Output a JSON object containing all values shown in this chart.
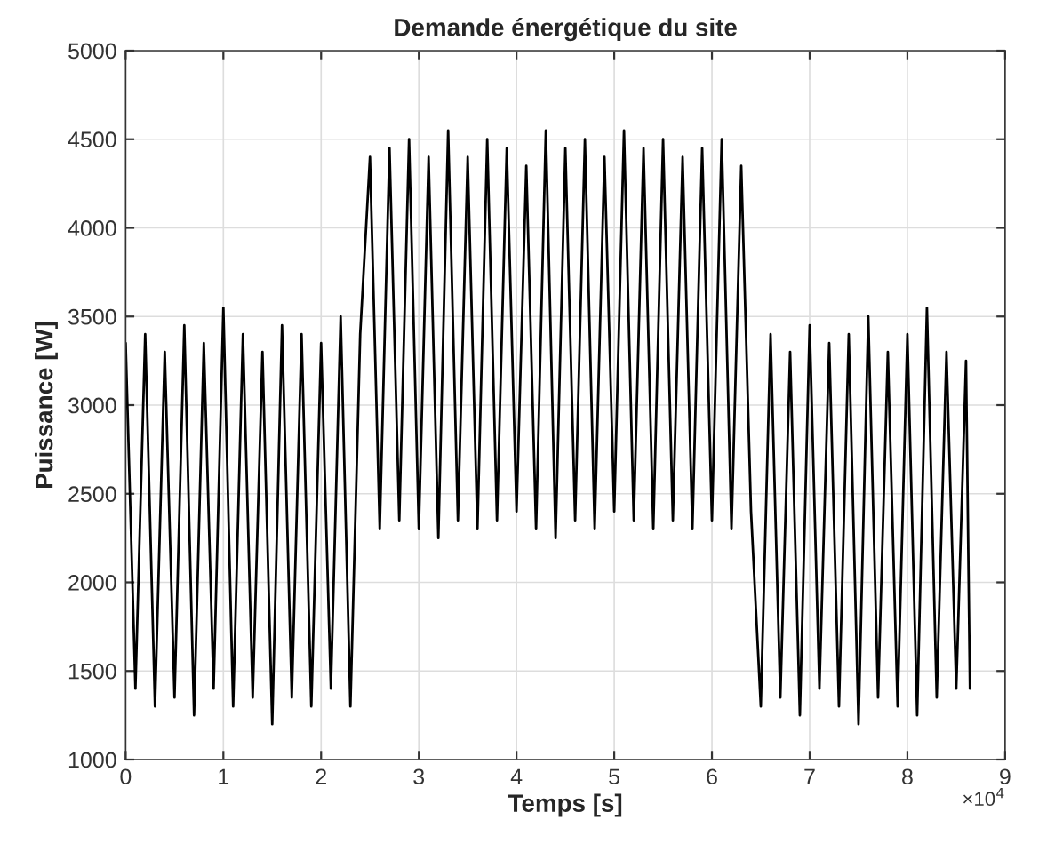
{
  "chart_data": {
    "type": "line",
    "title": "Demande énergétique du site",
    "xlabel": "Temps [s]",
    "ylabel": "Puissance [W]",
    "annotations": [
      "×10$^{4}$"
    ],
    "series": [
      {
        "color": "#000000",
        "x": [
          0,
          0.1,
          0.2,
          0.3,
          0.4,
          0.5,
          0.6,
          0.7,
          0.8,
          0.9,
          1.0,
          1.1,
          1.2,
          1.3,
          1.4,
          1.5,
          1.6,
          1.7,
          1.8,
          1.9,
          2.0,
          2.1,
          2.2,
          2.3,
          2.4,
          2.5,
          2.6,
          2.7,
          2.8,
          2.9,
          3.0,
          3.1,
          3.2,
          3.3,
          3.4,
          3.5,
          3.6,
          3.7,
          3.8,
          3.9,
          4.0,
          4.1,
          4.2,
          4.3,
          4.4,
          4.5,
          4.6,
          4.7,
          4.8,
          4.9,
          5.0,
          5.1,
          5.2,
          5.3,
          5.4,
          5.5,
          5.6,
          5.7,
          5.8,
          5.9,
          6.0,
          6.1,
          6.2,
          6.3,
          6.4,
          6.5,
          6.6,
          6.7,
          6.8,
          6.9,
          7.0,
          7.1,
          7.2,
          7.3,
          7.4,
          7.5,
          7.6,
          7.7,
          7.8,
          7.9,
          8.0,
          8.1,
          8.2,
          8.3,
          8.4,
          8.5,
          8.6,
          8.64
        ],
        "values": [
          3350,
          1400,
          3400,
          1300,
          3300,
          1350,
          3450,
          1250,
          3350,
          1400,
          3550,
          1300,
          3400,
          1350,
          3300,
          1200,
          3450,
          1350,
          3400,
          1300,
          3350,
          1400,
          3500,
          1300,
          3400,
          4400,
          2300,
          4450,
          2350,
          4500,
          2300,
          4400,
          2250,
          4550,
          2350,
          4400,
          2300,
          4500,
          2350,
          4450,
          2400,
          4350,
          2300,
          4550,
          2250,
          4450,
          2350,
          4500,
          2300,
          4400,
          2400,
          4550,
          2350,
          4450,
          2300,
          4500,
          2350,
          4400,
          2300,
          4450,
          2350,
          4500,
          2300,
          4350,
          2400,
          1300,
          3400,
          1350,
          3300,
          1250,
          3450,
          1400,
          3350,
          1300,
          3400,
          1200,
          3500,
          1350,
          3300,
          1300,
          3400,
          1250,
          3550,
          1350,
          3300,
          1400,
          3250,
          1400
        ]
      }
    ],
    "xlim": [
      0,
      9
    ],
    "xticks": [
      0,
      1,
      2,
      3,
      4,
      5,
      6,
      7,
      8,
      9
    ],
    "ylim": [
      1000,
      5000
    ],
    "yticks": [
      1000,
      1500,
      2000,
      2500,
      3000,
      3500,
      4000,
      4500,
      5000
    ],
    "grid": true,
    "legend": false,
    "line_style": "solid",
    "marker": "none"
  }
}
